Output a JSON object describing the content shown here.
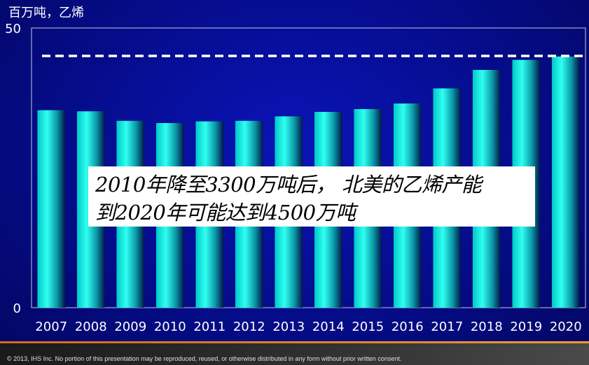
{
  "chart_data": {
    "type": "bar",
    "ylabel": "百万吨，乙烯",
    "ylim": [
      0,
      50
    ],
    "yticks": [
      "0",
      "50"
    ],
    "categories": [
      "2007",
      "2008",
      "2009",
      "2010",
      "2011",
      "2012",
      "2013",
      "2014",
      "2015",
      "2016",
      "2017",
      "2018",
      "2019",
      "2020"
    ],
    "values": [
      35.3,
      35.1,
      33.4,
      33.0,
      33.3,
      33.4,
      34.2,
      35.0,
      35.5,
      36.5,
      39.2,
      42.5,
      44.3,
      44.9
    ],
    "reference_line": {
      "value": 45,
      "style": "dashed",
      "color": "#ffffff"
    },
    "bar_color": "#22e8e0",
    "grid": false
  },
  "callout": {
    "line1": "2010年降至3300万吨后， 北美的乙烯产能",
    "line2": "到2020年可能达到4500万吨"
  },
  "footer": {
    "copyright": "© 2013, IHS Inc. No portion of this presentation may be reproduced, reused, or otherwise distributed in any form without prior written consent."
  }
}
